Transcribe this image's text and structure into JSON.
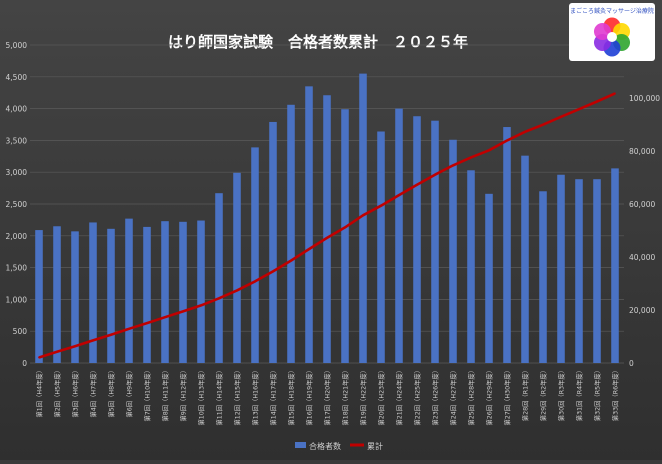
{
  "chart_data": {
    "type": "bar",
    "title": "はり師国家試験　合格者数累計　２０２５年",
    "categories": [
      "第1回（H4年度）",
      "第2回（H5年度）",
      "第3回（H6年度）",
      "第4回（H7年度）",
      "第5回（H8年度）",
      "第6回（H9年度）",
      "第7回（H10年度）",
      "第8回（H11年度）",
      "第9回（H12年度）",
      "第10回（H13年度）",
      "第11回（H14年度）",
      "第12回（H15年度）",
      "第13回（H16年度）",
      "第14回（H17年度）",
      "第15回（H18年度）",
      "第16回（H19年度）",
      "第17回（H20年度）",
      "第18回（H21年度）",
      "第19回（H22年度）",
      "第20回（H23年度）",
      "第21回（H24年度）",
      "第22回（H25年度）",
      "第23回（H26年度）",
      "第24回（H27年度）",
      "第25回（H28年度）",
      "第26回（H29年度）",
      "第27回（H30年度）",
      "第28回（R1年度）",
      "第29回（R2年度）",
      "第30回（R3年度）",
      "第31回（R4年度）",
      "第32回（R5年度）",
      "第33回（R6年度）"
    ],
    "series": [
      {
        "name": "合格者数",
        "axis": "left",
        "color": "#4a72c4",
        "values": [
          2090,
          2150,
          2070,
          2210,
          2110,
          2270,
          2140,
          2230,
          2220,
          2240,
          2670,
          2990,
          3390,
          3790,
          4060,
          4350,
          4210,
          3990,
          4550,
          3640,
          4000,
          3880,
          3810,
          3510,
          3030,
          2660,
          3710,
          3260,
          2700,
          2960,
          2890,
          2890,
          3060
        ]
      },
      {
        "name": "累計",
        "axis": "right",
        "color": "#c00000",
        "values": [
          2090,
          4240,
          6310,
          8520,
          10630,
          12900,
          15040,
          17270,
          19490,
          21730,
          24400,
          27390,
          30780,
          34570,
          38630,
          42980,
          47190,
          51180,
          55730,
          59370,
          63370,
          67250,
          71060,
          74570,
          77600,
          80260,
          83970,
          87230,
          89930,
          92890,
          95780,
          98670,
          101730
        ]
      }
    ],
    "yaxis_left": {
      "min": 0,
      "max": 5000,
      "step": 500,
      "tick_labels": [
        "0",
        "500",
        "1,000",
        "1,500",
        "2,000",
        "2,500",
        "3,000",
        "3,500",
        "4,000",
        "4,500",
        "5,000"
      ]
    },
    "yaxis_right": {
      "min": 0,
      "max": 120000,
      "step": 20000,
      "tick_labels": [
        "0",
        "20,000",
        "40,000",
        "60,000",
        "80,000",
        "100,000"
      ]
    },
    "grid": true,
    "legend_position": "bottom-center"
  },
  "logo": {
    "text": "まごころ鍼灸マッサージ治療院",
    "petal_colors": [
      "#ff2a2a",
      "#ffd800",
      "#2fa52f",
      "#1e3fd6",
      "#8a2be2",
      "#e03bd0"
    ]
  }
}
